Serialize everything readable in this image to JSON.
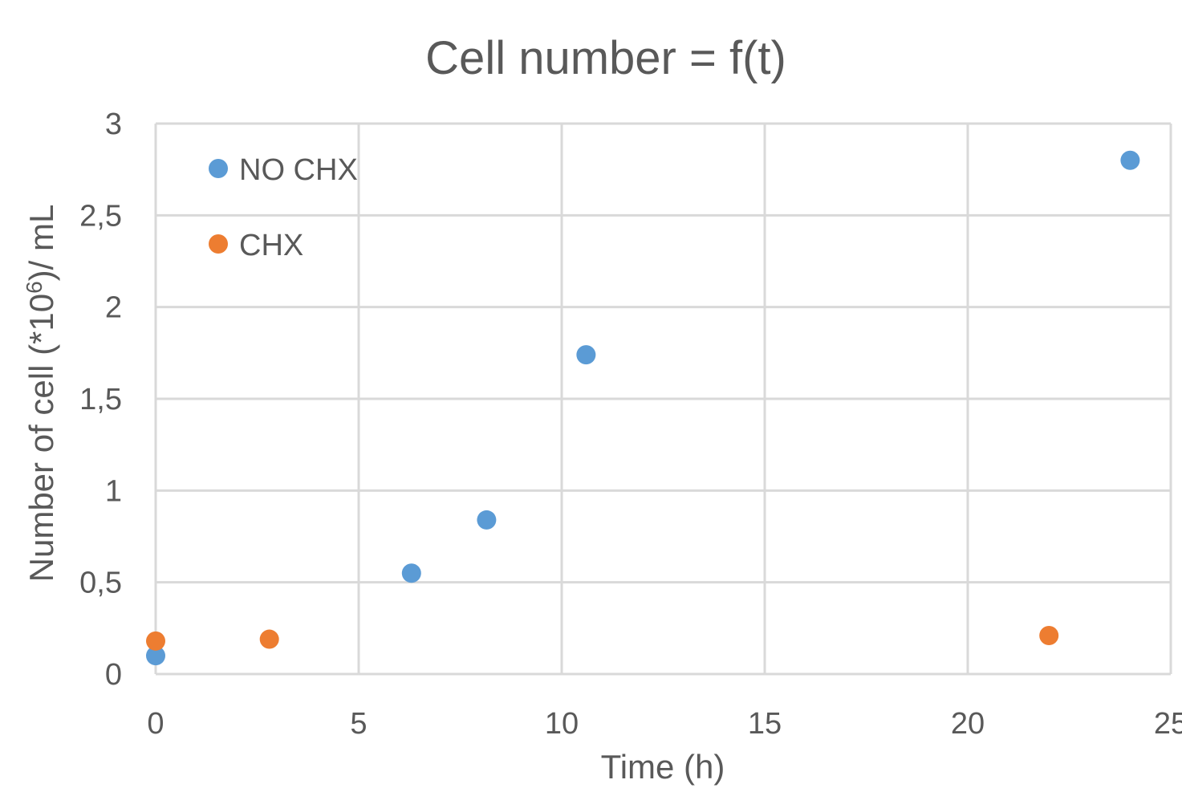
{
  "chart_data": {
    "type": "scatter",
    "title": "Cell number = f(t)",
    "xlabel": "Time (h)",
    "ylabel_main": "Number of cell (*10",
    "ylabel_sup": "6",
    "ylabel_tail": ")/ mL",
    "xlim": [
      0,
      25
    ],
    "ylim": [
      0,
      3
    ],
    "x_ticks": [
      0,
      5,
      10,
      15,
      20,
      25
    ],
    "x_tick_labels": [
      "0",
      "5",
      "10",
      "15",
      "20",
      "25"
    ],
    "y_ticks": [
      0,
      0.5,
      1,
      1.5,
      2,
      2.5,
      3
    ],
    "y_tick_labels": [
      "0",
      "0,5",
      "1",
      "1,5",
      "2",
      "2,5",
      "3"
    ],
    "grid": true,
    "legend_position": "top-left inside plot",
    "series": [
      {
        "name": "NO CHX",
        "color": "#5b9bd5",
        "points": [
          {
            "x": 0,
            "y": 0.1
          },
          {
            "x": 6.3,
            "y": 0.55
          },
          {
            "x": 8.15,
            "y": 0.84
          },
          {
            "x": 10.6,
            "y": 1.74
          },
          {
            "x": 24,
            "y": 2.8
          }
        ]
      },
      {
        "name": "CHX",
        "color": "#ed7d31",
        "points": [
          {
            "x": 0,
            "y": 0.18
          },
          {
            "x": 2.8,
            "y": 0.19
          },
          {
            "x": 22,
            "y": 0.21
          }
        ]
      }
    ]
  }
}
